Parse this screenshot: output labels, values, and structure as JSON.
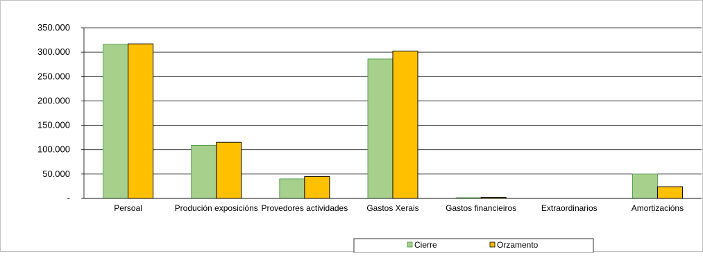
{
  "chart_data": {
    "type": "bar",
    "title": "",
    "xlabel": "",
    "ylabel": "",
    "ylim": [
      0,
      350000
    ],
    "yticks": [
      0,
      50000,
      100000,
      150000,
      200000,
      250000,
      300000,
      350000
    ],
    "ytick_labels": [
      "-",
      "50.000",
      "100.000",
      "150.000",
      "200.000",
      "250.000",
      "300.000",
      "350.000"
    ],
    "grid": true,
    "legend_position": "bottom",
    "categories": [
      "Persoal",
      "Produción exposicións",
      "Provedores actividades",
      "Gastos Xerais",
      "Gastos financieiros",
      "Extraordinarios",
      "Amortizacións"
    ],
    "series": [
      {
        "name": "Cierre",
        "color": "#a8d08d",
        "values": [
          316000,
          109000,
          40000,
          286000,
          1500,
          0,
          50000
        ]
      },
      {
        "name": "Orzamento",
        "color": "#ffc000",
        "values": [
          317000,
          115000,
          45000,
          302000,
          2000,
          0,
          24000
        ]
      }
    ]
  }
}
